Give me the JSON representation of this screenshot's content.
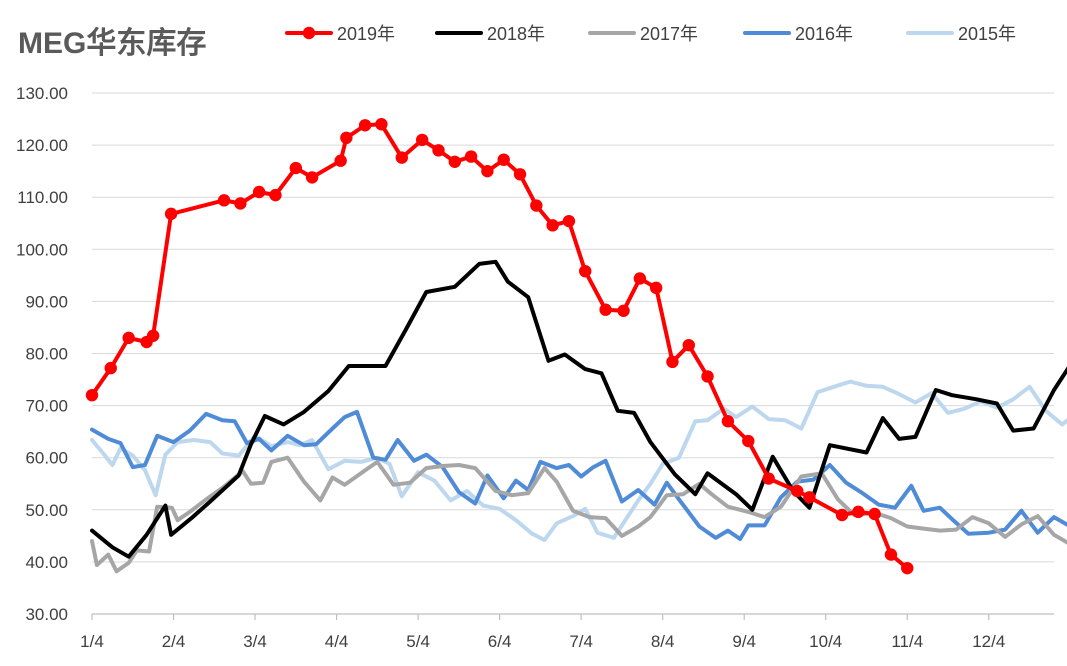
{
  "chart_data": {
    "type": "line",
    "title": "MEG华东库存",
    "xlabel": "",
    "ylabel": "",
    "ylim": [
      30,
      130
    ],
    "y_ticks": [
      "30.00",
      "40.00",
      "50.00",
      "60.00",
      "70.00",
      "80.00",
      "90.00",
      "100.00",
      "110.00",
      "120.00",
      "130.00"
    ],
    "x_ticks": [
      "1/4",
      "2/4",
      "3/4",
      "4/4",
      "5/4",
      "6/4",
      "7/4",
      "8/4",
      "9/4",
      "10/4",
      "11/4",
      "12/4"
    ],
    "grid": "horizontal",
    "legend_position": "top",
    "series": [
      {
        "name": "2019年",
        "color": "#ff0000",
        "markers": true,
        "points": [
          [
            0,
            72
          ],
          [
            0.23,
            77.2
          ],
          [
            0.45,
            83
          ],
          [
            0.67,
            82.2
          ],
          [
            0.75,
            83.4
          ],
          [
            0.97,
            106.8
          ],
          [
            1.62,
            109.4
          ],
          [
            1.82,
            108.8
          ],
          [
            2.05,
            111
          ],
          [
            2.25,
            110.4
          ],
          [
            2.5,
            115.6
          ],
          [
            2.7,
            113.8
          ],
          [
            3.05,
            117
          ],
          [
            3.12,
            121.4
          ],
          [
            3.35,
            123.8
          ],
          [
            3.55,
            124
          ],
          [
            3.8,
            117.6
          ],
          [
            4.05,
            121
          ],
          [
            4.25,
            119
          ],
          [
            4.45,
            116.8
          ],
          [
            4.65,
            117.8
          ],
          [
            4.85,
            115
          ],
          [
            5.05,
            117.2
          ],
          [
            5.25,
            114.4
          ],
          [
            5.45,
            108.4
          ],
          [
            5.65,
            104.6
          ],
          [
            5.85,
            105.4
          ],
          [
            6.05,
            95.8
          ],
          [
            6.3,
            88.4
          ],
          [
            6.52,
            88.2
          ],
          [
            6.72,
            94.4
          ],
          [
            6.92,
            92.6
          ],
          [
            7.12,
            78.4
          ],
          [
            7.32,
            81.6
          ],
          [
            7.55,
            75.6
          ],
          [
            7.8,
            67
          ],
          [
            8.05,
            63.2
          ],
          [
            8.3,
            56
          ],
          [
            8.65,
            53.6
          ],
          [
            8.8,
            52.4
          ],
          [
            9.2,
            49
          ],
          [
            9.4,
            49.6
          ],
          [
            9.6,
            49.2
          ],
          [
            9.8,
            41.4
          ],
          [
            10,
            38.8
          ]
        ]
      },
      {
        "name": "2018年",
        "color": "#000000",
        "markers": false,
        "points": [
          [
            0,
            46
          ],
          [
            0.25,
            42.8
          ],
          [
            0.45,
            41
          ],
          [
            0.67,
            45.2
          ],
          [
            0.9,
            50.8
          ],
          [
            0.97,
            45.2
          ],
          [
            1.22,
            48.4
          ],
          [
            1.45,
            51.6
          ],
          [
            1.8,
            56.6
          ],
          [
            1.95,
            62.6
          ],
          [
            2.12,
            68
          ],
          [
            2.35,
            66.4
          ],
          [
            2.6,
            68.8
          ],
          [
            2.9,
            72.8
          ],
          [
            3.15,
            77.6
          ],
          [
            3.6,
            77.6
          ],
          [
            3.85,
            84.6
          ],
          [
            4.1,
            91.8
          ],
          [
            4.45,
            92.8
          ],
          [
            4.75,
            97.2
          ],
          [
            4.95,
            97.6
          ],
          [
            5.1,
            93.8
          ],
          [
            5.35,
            90.8
          ],
          [
            5.6,
            78.6
          ],
          [
            5.8,
            79.8
          ],
          [
            6.05,
            77
          ],
          [
            6.25,
            76.2
          ],
          [
            6.45,
            69
          ],
          [
            6.65,
            68.6
          ],
          [
            6.85,
            63
          ],
          [
            7.15,
            56.8
          ],
          [
            7.4,
            53
          ],
          [
            7.55,
            57
          ],
          [
            7.9,
            53
          ],
          [
            8.1,
            50
          ],
          [
            8.35,
            60.2
          ],
          [
            8.6,
            53.6
          ],
          [
            8.8,
            50.4
          ],
          [
            9.05,
            62.4
          ],
          [
            9.5,
            61
          ],
          [
            9.7,
            67.6
          ],
          [
            9.9,
            63.6
          ],
          [
            10.1,
            64
          ],
          [
            10.35,
            73
          ],
          [
            10.55,
            72
          ],
          [
            10.85,
            71.2
          ],
          [
            11.1,
            70.4
          ],
          [
            11.3,
            65.2
          ],
          [
            11.55,
            65.6
          ],
          [
            11.8,
            73
          ],
          [
            12,
            77.8
          ]
        ]
      },
      {
        "name": "2017年",
        "color": "#a6a6a6",
        "markers": false,
        "points": [
          [
            0,
            44
          ],
          [
            0.06,
            39.4
          ],
          [
            0.2,
            41.4
          ],
          [
            0.3,
            38.2
          ],
          [
            0.45,
            39.8
          ],
          [
            0.55,
            42.2
          ],
          [
            0.7,
            42
          ],
          [
            0.8,
            50.6
          ],
          [
            0.98,
            50.4
          ],
          [
            1.05,
            48
          ],
          [
            1.2,
            49.6
          ],
          [
            1.4,
            52
          ],
          [
            1.6,
            54.2
          ],
          [
            1.85,
            57.4
          ],
          [
            1.95,
            55
          ],
          [
            2.1,
            55.2
          ],
          [
            2.2,
            59.2
          ],
          [
            2.4,
            60
          ],
          [
            2.6,
            55.4
          ],
          [
            2.8,
            51.8
          ],
          [
            2.95,
            56.2
          ],
          [
            3.1,
            54.8
          ],
          [
            3.3,
            57
          ],
          [
            3.5,
            59.2
          ],
          [
            3.7,
            54.8
          ],
          [
            3.9,
            55.2
          ],
          [
            4.1,
            58
          ],
          [
            4.3,
            58.4
          ],
          [
            4.5,
            58.6
          ],
          [
            4.7,
            58
          ],
          [
            4.95,
            53.6
          ],
          [
            5.15,
            52.8
          ],
          [
            5.35,
            53.2
          ],
          [
            5.55,
            58
          ],
          [
            5.7,
            55.4
          ],
          [
            5.9,
            49.8
          ],
          [
            6.1,
            48.6
          ],
          [
            6.3,
            48.4
          ],
          [
            6.5,
            45
          ],
          [
            6.7,
            46.8
          ],
          [
            6.85,
            48.6
          ],
          [
            7.05,
            52.8
          ],
          [
            7.25,
            53
          ],
          [
            7.45,
            55
          ],
          [
            7.6,
            53
          ],
          [
            7.8,
            50.6
          ],
          [
            8.05,
            49.6
          ],
          [
            8.25,
            48.6
          ],
          [
            8.45,
            50.6
          ],
          [
            8.7,
            56.4
          ],
          [
            8.95,
            57
          ],
          [
            9.15,
            52
          ],
          [
            9.35,
            49
          ],
          [
            9.6,
            49.4
          ],
          [
            9.8,
            48.4
          ],
          [
            10,
            46.8
          ],
          [
            10.2,
            46.4
          ],
          [
            10.4,
            46
          ],
          [
            10.6,
            46.2
          ],
          [
            10.8,
            48.6
          ],
          [
            11,
            47.4
          ],
          [
            11.2,
            44.8
          ],
          [
            11.4,
            47.2
          ],
          [
            11.6,
            48.8
          ],
          [
            11.8,
            45.2
          ],
          [
            12,
            43.4
          ]
        ]
      },
      {
        "name": "2016年",
        "color": "#4f8bd6",
        "markers": false,
        "points": [
          [
            0,
            65.4
          ],
          [
            0.2,
            63.6
          ],
          [
            0.35,
            62.8
          ],
          [
            0.5,
            58.2
          ],
          [
            0.65,
            58.6
          ],
          [
            0.8,
            64.2
          ],
          [
            1.0,
            63
          ],
          [
            1.2,
            65.2
          ],
          [
            1.4,
            68.4
          ],
          [
            1.6,
            67.2
          ],
          [
            1.75,
            67
          ],
          [
            1.9,
            62.8
          ],
          [
            2.05,
            63.6
          ],
          [
            2.2,
            61.4
          ],
          [
            2.4,
            64.2
          ],
          [
            2.6,
            62.4
          ],
          [
            2.75,
            62.6
          ],
          [
            2.95,
            65.6
          ],
          [
            3.1,
            67.8
          ],
          [
            3.25,
            68.8
          ],
          [
            3.45,
            60
          ],
          [
            3.6,
            59.6
          ],
          [
            3.75,
            63.4
          ],
          [
            3.95,
            59.4
          ],
          [
            4.1,
            60.6
          ],
          [
            4.3,
            58.2
          ],
          [
            4.5,
            53.4
          ],
          [
            4.7,
            51.2
          ],
          [
            4.85,
            56.6
          ],
          [
            5.05,
            52.2
          ],
          [
            5.2,
            55.6
          ],
          [
            5.35,
            53.8
          ],
          [
            5.5,
            59.2
          ],
          [
            5.7,
            58
          ],
          [
            5.85,
            58.6
          ],
          [
            6.0,
            56.4
          ],
          [
            6.15,
            58.2
          ],
          [
            6.3,
            59.4
          ],
          [
            6.5,
            51.6
          ],
          [
            6.7,
            53.8
          ],
          [
            6.9,
            51
          ],
          [
            7.05,
            55.2
          ],
          [
            7.2,
            52
          ],
          [
            7.45,
            46.8
          ],
          [
            7.65,
            44.6
          ],
          [
            7.8,
            46
          ],
          [
            7.95,
            44.4
          ],
          [
            8.05,
            47
          ],
          [
            8.25,
            47
          ],
          [
            8.45,
            52.4
          ],
          [
            8.65,
            55.4
          ],
          [
            8.85,
            55.8
          ],
          [
            9.05,
            58.6
          ],
          [
            9.25,
            55.2
          ],
          [
            9.45,
            53.2
          ],
          [
            9.65,
            51
          ],
          [
            9.85,
            50.4
          ],
          [
            10.05,
            54.6
          ],
          [
            10.2,
            49.8
          ],
          [
            10.4,
            50.4
          ],
          [
            10.55,
            48.2
          ],
          [
            10.75,
            45.4
          ],
          [
            11.0,
            45.6
          ],
          [
            11.2,
            46.2
          ],
          [
            11.4,
            49.8
          ],
          [
            11.6,
            45.6
          ],
          [
            11.8,
            48.6
          ],
          [
            12,
            46.8
          ]
        ]
      },
      {
        "name": "2015年",
        "color": "#bdd7ee",
        "markers": false,
        "points": [
          [
            0,
            63.4
          ],
          [
            0.15,
            60.6
          ],
          [
            0.25,
            58.6
          ],
          [
            0.35,
            61.8
          ],
          [
            0.5,
            60.4
          ],
          [
            0.65,
            57.6
          ],
          [
            0.78,
            52.8
          ],
          [
            0.9,
            60.6
          ],
          [
            1.05,
            63
          ],
          [
            1.25,
            63.4
          ],
          [
            1.45,
            63
          ],
          [
            1.6,
            60.8
          ],
          [
            1.8,
            60.4
          ],
          [
            2.0,
            64.2
          ],
          [
            2.2,
            62.2
          ],
          [
            2.4,
            63
          ],
          [
            2.55,
            62.4
          ],
          [
            2.7,
            63.4
          ],
          [
            2.9,
            57.8
          ],
          [
            3.1,
            59.4
          ],
          [
            3.3,
            59.2
          ],
          [
            3.5,
            60
          ],
          [
            3.65,
            58.8
          ],
          [
            3.8,
            52.6
          ],
          [
            4.0,
            57.2
          ],
          [
            4.2,
            55.6
          ],
          [
            4.4,
            51.8
          ],
          [
            4.6,
            53.6
          ],
          [
            4.8,
            50.8
          ],
          [
            5.0,
            50.2
          ],
          [
            5.2,
            48
          ],
          [
            5.4,
            45.4
          ],
          [
            5.55,
            44.2
          ],
          [
            5.7,
            47.4
          ],
          [
            5.9,
            48.8
          ],
          [
            6.05,
            50.2
          ],
          [
            6.2,
            45.6
          ],
          [
            6.4,
            44.6
          ],
          [
            6.55,
            48.2
          ],
          [
            6.7,
            51.8
          ],
          [
            6.85,
            55
          ],
          [
            7.0,
            58.8
          ],
          [
            7.2,
            60
          ],
          [
            7.4,
            67
          ],
          [
            7.55,
            67.2
          ],
          [
            7.75,
            69.4
          ],
          [
            7.9,
            67.8
          ],
          [
            8.1,
            69.8
          ],
          [
            8.3,
            67.4
          ],
          [
            8.5,
            67.2
          ],
          [
            8.7,
            65.6
          ],
          [
            8.9,
            72.6
          ],
          [
            9.1,
            73.6
          ],
          [
            9.3,
            74.6
          ],
          [
            9.5,
            73.8
          ],
          [
            9.7,
            73.6
          ],
          [
            9.9,
            72.2
          ],
          [
            10.1,
            70.6
          ],
          [
            10.3,
            72.4
          ],
          [
            10.5,
            68.6
          ],
          [
            10.7,
            69.4
          ],
          [
            10.9,
            70.8
          ],
          [
            11.1,
            69.6
          ],
          [
            11.3,
            71.2
          ],
          [
            11.5,
            73.6
          ],
          [
            11.7,
            69
          ],
          [
            11.9,
            66.4
          ],
          [
            12,
            67.6
          ]
        ]
      }
    ]
  }
}
